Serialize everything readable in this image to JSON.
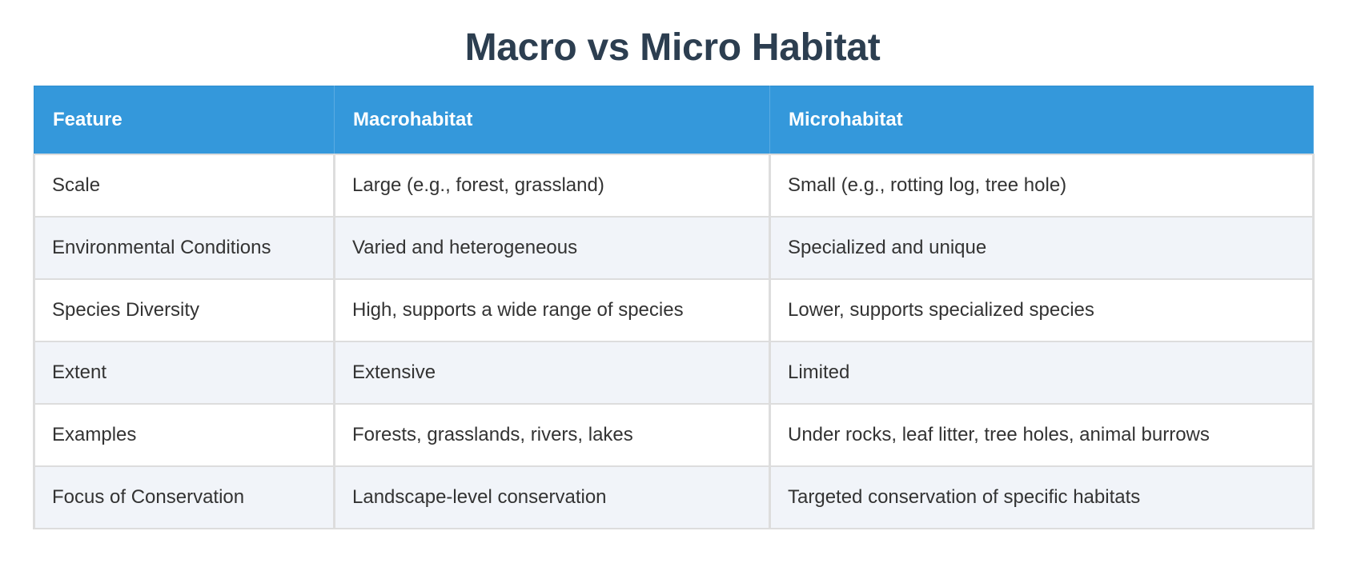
{
  "title": "Macro vs Micro Habitat",
  "colors": {
    "header_bg": "#3498db",
    "header_text": "#ffffff",
    "title_text": "#2c3e50",
    "row_alt_bg": "#f1f4f9",
    "border": "#dddddd"
  },
  "table": {
    "headers": [
      "Feature",
      "Macrohabitat",
      "Microhabitat"
    ],
    "rows": [
      [
        "Scale",
        "Large (e.g., forest, grassland)",
        "Small (e.g., rotting log, tree hole)"
      ],
      [
        "Environmental Conditions",
        "Varied and heterogeneous",
        "Specialized and unique"
      ],
      [
        "Species Diversity",
        "High, supports a wide range of species",
        "Lower, supports specialized species"
      ],
      [
        "Extent",
        "Extensive",
        "Limited"
      ],
      [
        "Examples",
        "Forests, grasslands, rivers, lakes",
        "Under rocks, leaf litter, tree holes, animal burrows"
      ],
      [
        "Focus of Conservation",
        "Landscape-level conservation",
        "Targeted conservation of specific habitats"
      ]
    ]
  }
}
